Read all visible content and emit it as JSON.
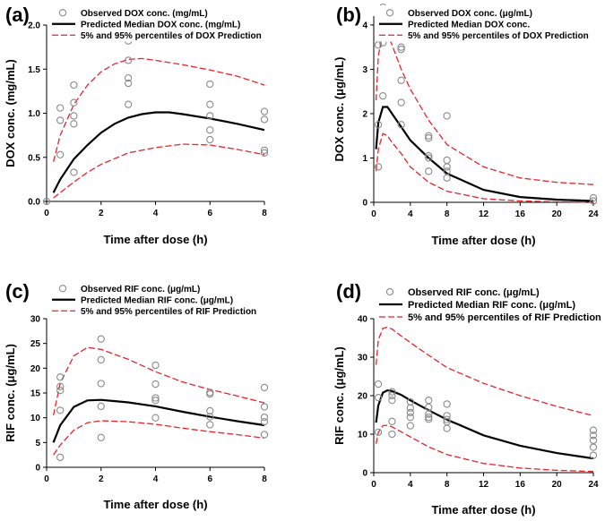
{
  "chart_data": [
    {
      "panel": "(a)",
      "type": "line",
      "title": "",
      "xlabel": "Time after dose (h)",
      "ylabel": "DOX conc. (mg/mL)",
      "xlim": [
        0,
        8
      ],
      "ylim": [
        0,
        2.0
      ],
      "xticks": [
        0,
        2,
        4,
        6,
        8
      ],
      "yticks": [
        0,
        0.5,
        1.0,
        1.5,
        2.0
      ],
      "ytick_labels": [
        "0.0",
        "0.5",
        "1.0",
        "1.5",
        "2.0"
      ],
      "grid": false,
      "legend": [
        "Observed DOX conc. (mg/mL)",
        "Predicted Median DOX conc. (mg/mL)",
        "5% and 95% percentiles of DOX Prediction"
      ],
      "observed": {
        "x": [
          0,
          0.5,
          0.5,
          0.5,
          1,
          1,
          1,
          1,
          1,
          3,
          3,
          3,
          3,
          3,
          3,
          6,
          6,
          6,
          6,
          6,
          8,
          8,
          8,
          8
        ],
        "y": [
          0.0,
          0.53,
          0.92,
          1.06,
          0.33,
          0.88,
          0.97,
          1.12,
          1.32,
          1.1,
          1.34,
          1.6,
          1.82,
          1.88,
          1.4,
          0.7,
          0.81,
          0.97,
          1.1,
          1.33,
          0.58,
          0.93,
          1.02,
          0.55
        ]
      },
      "median": {
        "x": [
          0.25,
          0.5,
          1,
          1.5,
          2,
          2.5,
          3,
          3.5,
          4,
          4.5,
          5,
          6,
          7,
          8
        ],
        "y": [
          0.1,
          0.25,
          0.48,
          0.64,
          0.78,
          0.88,
          0.95,
          0.99,
          1.01,
          1.01,
          0.99,
          0.94,
          0.88,
          0.81
        ]
      },
      "p95": {
        "x": [
          0.25,
          0.5,
          1,
          1.5,
          2,
          2.5,
          3,
          3.5,
          4,
          5,
          6,
          7,
          8
        ],
        "y": [
          0.45,
          0.75,
          1.1,
          1.32,
          1.47,
          1.56,
          1.61,
          1.62,
          1.6,
          1.55,
          1.49,
          1.42,
          1.32
        ]
      },
      "p5": {
        "x": [
          0.25,
          0.5,
          1,
          1.5,
          2,
          3,
          4,
          5,
          6,
          7,
          8
        ],
        "y": [
          0.04,
          0.1,
          0.22,
          0.33,
          0.42,
          0.55,
          0.61,
          0.65,
          0.64,
          0.59,
          0.53
        ]
      }
    },
    {
      "panel": "(b)",
      "type": "line",
      "title": "",
      "xlabel": "Time after dose (h)",
      "ylabel": "DOX conc. (μg/mL)",
      "xlim": [
        0,
        24
      ],
      "ylim": [
        0,
        4.2
      ],
      "xticks": [
        0,
        4,
        8,
        12,
        16,
        20,
        24
      ],
      "yticks": [
        0,
        1,
        2,
        3,
        4
      ],
      "grid": false,
      "legend": [
        "Observed DOX conc. (μg/mL)",
        "Predicted Median DOX conc.",
        "5% and 95% percentiles of DOX Prediction"
      ],
      "observed": {
        "x": [
          0.5,
          0.5,
          0.5,
          1,
          1,
          1,
          1,
          3,
          3,
          3,
          3,
          3,
          6,
          6,
          6,
          6,
          6,
          8,
          8,
          8,
          8,
          8,
          24,
          24
        ],
        "y": [
          0.8,
          1.75,
          3.55,
          4.4,
          4.15,
          3.6,
          2.4,
          3.5,
          3.45,
          2.75,
          2.25,
          1.75,
          1.5,
          1.45,
          1.05,
          1.0,
          0.7,
          1.95,
          0.95,
          0.8,
          0.7,
          0.55,
          0.1,
          0.03
        ]
      },
      "median": {
        "x": [
          0.25,
          0.5,
          1,
          1.5,
          2,
          3,
          4,
          6,
          8,
          12,
          16,
          20,
          24
        ],
        "y": [
          1.2,
          1.8,
          2.15,
          2.15,
          2.0,
          1.7,
          1.4,
          1.0,
          0.65,
          0.28,
          0.12,
          0.06,
          0.03
        ]
      },
      "p95": {
        "x": [
          0.25,
          0.5,
          1,
          1.5,
          2,
          3,
          4,
          6,
          8,
          12,
          16,
          20,
          24
        ],
        "y": [
          2.3,
          3.3,
          3.85,
          3.8,
          3.55,
          3.0,
          2.55,
          1.85,
          1.3,
          0.8,
          0.55,
          0.45,
          0.4
        ]
      },
      "p5": {
        "x": [
          0.25,
          0.5,
          1,
          1.5,
          2,
          3,
          4,
          6,
          8,
          12,
          16,
          20,
          24
        ],
        "y": [
          0.7,
          1.2,
          1.55,
          1.5,
          1.35,
          1.1,
          0.8,
          0.45,
          0.25,
          0.08,
          0.03,
          0.01,
          0.0
        ]
      }
    },
    {
      "panel": "(c)",
      "type": "line",
      "title": "",
      "xlabel": "Time after dose (h)",
      "ylabel": "RIF conc. (μg/mL)",
      "xlim": [
        0,
        8
      ],
      "ylim": [
        0,
        30
      ],
      "xticks": [
        0,
        2,
        4,
        6,
        8
      ],
      "yticks": [
        0,
        5,
        10,
        15,
        20,
        25,
        30
      ],
      "grid": false,
      "legend": [
        "Observed RIF conc. (μg/mL)",
        "Predicted Median RIF conc. (μg/mL)",
        "5% and 95% percentiles of RIF Prediction"
      ],
      "observed": {
        "x": [
          0.5,
          0.5,
          0.5,
          0.5,
          0.5,
          2,
          2,
          2,
          2,
          2,
          4,
          4,
          4,
          4,
          4,
          6,
          6,
          6,
          6,
          6,
          8,
          8,
          8,
          8,
          8
        ],
        "y": [
          2,
          11.5,
          15.5,
          16.3,
          18.2,
          6,
          12.3,
          16.9,
          21.7,
          25.9,
          10,
          13.5,
          14,
          16.8,
          20.6,
          8.6,
          10.2,
          11.4,
          14.8,
          15.1,
          6.6,
          9.2,
          10.1,
          12.2,
          16.1
        ]
      },
      "median": {
        "x": [
          0.25,
          0.5,
          1,
          1.5,
          2,
          3,
          4,
          5,
          6,
          7,
          8
        ],
        "y": [
          5,
          8.5,
          12.2,
          13.5,
          13.6,
          13.1,
          12.3,
          11.2,
          10.2,
          9.3,
          8.5
        ]
      },
      "p95": {
        "x": [
          0.25,
          0.5,
          1,
          1.5,
          2,
          3,
          4,
          5,
          6,
          7,
          8
        ],
        "y": [
          10.5,
          17,
          22.5,
          24.2,
          23.8,
          21.8,
          19.3,
          17.2,
          15.7,
          14.4,
          13.0
        ]
      },
      "p5": {
        "x": [
          0.25,
          0.5,
          1,
          1.5,
          2,
          3,
          4,
          5,
          6,
          7,
          8
        ],
        "y": [
          2.5,
          4.5,
          7.5,
          9.0,
          9.4,
          9.2,
          8.7,
          7.9,
          7.2,
          6.6,
          5.9
        ]
      }
    },
    {
      "panel": "(d)",
      "type": "line",
      "title": "",
      "xlabel": "Time after dose (h)",
      "ylabel": "RIF conc. (μg/mL)",
      "xlim": [
        0,
        24
      ],
      "ylim": [
        0,
        40
      ],
      "xticks": [
        0,
        4,
        8,
        12,
        16,
        20,
        24
      ],
      "yticks": [
        0,
        10,
        20,
        30,
        40
      ],
      "grid": false,
      "legend": [
        "Observed RIF conc. (μg/mL)",
        "Predicted Median RIF conc. (μg/mL)",
        "5% and 95% percentiles of RIF Prediction"
      ],
      "observed": {
        "x": [
          0.5,
          0.5,
          0.5,
          2,
          2,
          2,
          2,
          2,
          4,
          4,
          4,
          4,
          4,
          6,
          6,
          6,
          6,
          6,
          8,
          8,
          8,
          8,
          8,
          24,
          24,
          24,
          24,
          24
        ],
        "y": [
          10.5,
          19.5,
          23,
          10,
          13.3,
          18.8,
          20,
          21,
          12.2,
          14.4,
          15.6,
          16.8,
          18.4,
          13.9,
          14.4,
          15.2,
          17.0,
          18.8,
          11.5,
          13.2,
          13.8,
          14.8,
          17.8,
          4.5,
          6.6,
          8.4,
          9.7,
          11.0
        ]
      },
      "median": {
        "x": [
          0.25,
          0.5,
          1,
          1.5,
          2,
          3,
          4,
          6,
          8,
          12,
          16,
          20,
          24
        ],
        "y": [
          13,
          17.5,
          20.8,
          21.4,
          21.2,
          20.2,
          18.8,
          16.2,
          13.8,
          9.7,
          7.0,
          5.1,
          3.7
        ]
      },
      "p95": {
        "x": [
          0.25,
          0.5,
          1,
          1.5,
          2,
          3,
          4,
          6,
          8,
          12,
          16,
          20,
          24
        ],
        "y": [
          28,
          34.5,
          37.5,
          37.8,
          37.3,
          35.5,
          33.8,
          30.5,
          27.3,
          23.2,
          20.0,
          17.2,
          14.8
        ]
      },
      "p5": {
        "x": [
          0.25,
          0.5,
          1,
          1.5,
          2,
          3,
          4,
          6,
          8,
          12,
          16,
          20,
          24
        ],
        "y": [
          7.5,
          10.5,
          12.2,
          12.3,
          11.9,
          10.6,
          9.3,
          6.7,
          4.7,
          2.4,
          1.2,
          0.6,
          0.3
        ]
      }
    }
  ]
}
